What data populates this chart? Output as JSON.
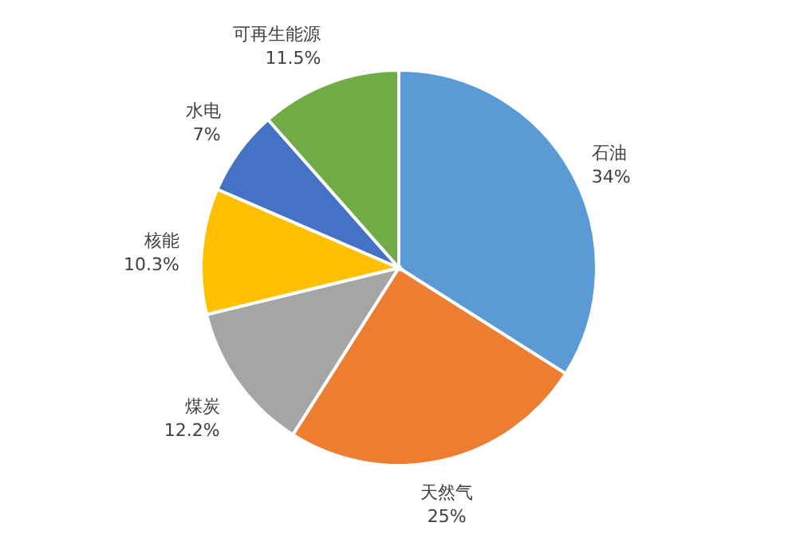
{
  "chart_data": {
    "type": "pie",
    "categories": [
      "石油",
      "天然气",
      "煤炭",
      "核能",
      "水电",
      "可再生能源"
    ],
    "values": [
      34,
      25,
      12.2,
      10.3,
      7,
      11.5
    ],
    "colors": [
      "#5b9bd5",
      "#ed7d31",
      "#a5a5a5",
      "#ffc000",
      "#4472c4",
      "#70ad47"
    ],
    "value_labels": [
      "34%",
      "25%",
      "12.2%",
      "10.3%",
      "7%",
      "11.5%"
    ]
  }
}
